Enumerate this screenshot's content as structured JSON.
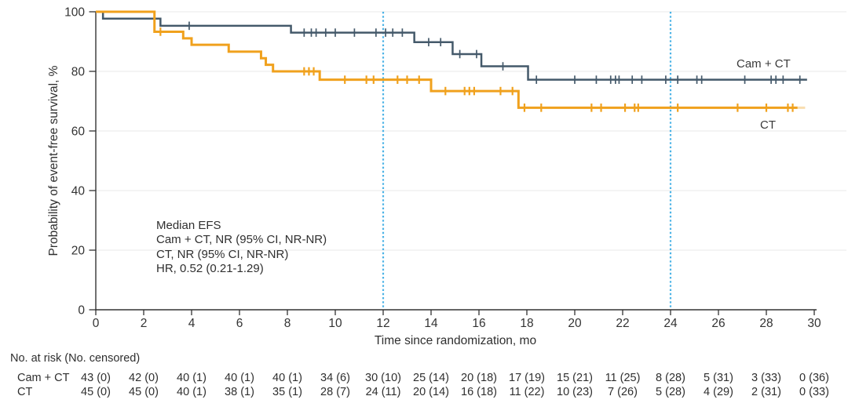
{
  "chart_data": {
    "type": "line",
    "subtype": "kaplan-meier-step-curve",
    "title": "",
    "xlabel": "Time since randomization, mo",
    "ylabel": "Probability of event-free survival, %",
    "xlim": [
      0,
      30
    ],
    "ylim": [
      0,
      100
    ],
    "x_ticks": [
      0,
      2,
      4,
      6,
      8,
      10,
      12,
      14,
      16,
      18,
      20,
      22,
      24,
      26,
      28,
      30
    ],
    "y_ticks": [
      0,
      20,
      40,
      60,
      80,
      100
    ],
    "grid": "horizontal-light",
    "grid_color": "#e8e8e8",
    "axis_color": "#333333",
    "reference_lines": {
      "x_values": [
        12,
        24
      ],
      "style": "dotted",
      "color": "#4cb3e6"
    },
    "series": [
      {
        "name": "Cam + CT",
        "color": "#44596a",
        "line_width": 2.5,
        "steps": [
          [
            0,
            100
          ],
          [
            0.3,
            97.7
          ],
          [
            2.7,
            95.3
          ],
          [
            8.15,
            93.0
          ],
          [
            13.3,
            89.8
          ],
          [
            14.9,
            85.8
          ],
          [
            16.1,
            81.7
          ],
          [
            18.05,
            77.2
          ]
        ],
        "end_x": 29.7,
        "censor_marks": [
          3.9,
          8.7,
          9.0,
          9.2,
          9.6,
          10.0,
          10.8,
          11.7,
          12.1,
          12.4,
          12.8,
          13.9,
          14.4,
          15.2,
          15.9,
          17.0,
          18.4,
          20.0,
          20.9,
          21.5,
          21.7,
          21.85,
          22.4,
          22.8,
          23.8,
          24.3,
          25.1,
          25.3,
          27.1,
          28.2,
          28.4,
          28.7,
          29.4
        ],
        "label": {
          "text": "Cam + CT"
        }
      },
      {
        "name": "CT",
        "color": "#f0a11d",
        "line_width": 3,
        "steps": [
          [
            0,
            100
          ],
          [
            2.45,
            93.3
          ],
          [
            3.65,
            91.1
          ],
          [
            4.0,
            88.9
          ],
          [
            5.55,
            86.6
          ],
          [
            6.9,
            84.4
          ],
          [
            7.1,
            82.2
          ],
          [
            7.4,
            80.0
          ],
          [
            9.35,
            77.2
          ],
          [
            14.0,
            73.4
          ],
          [
            17.65,
            67.8
          ]
        ],
        "end_x": 29.3,
        "ghost_end_x": 29.62,
        "censor_marks": [
          2.7,
          8.7,
          8.9,
          9.1,
          10.4,
          11.3,
          11.6,
          12.6,
          13.0,
          13.5,
          14.6,
          15.4,
          15.6,
          15.8,
          16.9,
          17.4,
          17.9,
          18.6,
          20.7,
          21.1,
          22.1,
          22.5,
          22.65,
          24.3,
          26.8,
          28.0,
          28.9,
          29.1
        ],
        "label": {
          "text": "CT"
        }
      }
    ],
    "annotation": {
      "lines": [
        "Median EFS",
        "Cam + CT, NR (95% CI, NR-NR)",
        "CT, NR (95% CI, NR-NR)",
        "HR, 0.52 (0.21-1.29)"
      ]
    },
    "risk_table": {
      "title": "No. at risk (No. censored)",
      "times": [
        0,
        2,
        4,
        6,
        8,
        10,
        12,
        14,
        16,
        18,
        20,
        22,
        24,
        26,
        28,
        30
      ],
      "rows": [
        {
          "label": "Cam + CT",
          "values": [
            "43 (0)",
            "42 (0)",
            "40 (1)",
            "40 (1)",
            "40 (1)",
            "34 (6)",
            "30 (10)",
            "25 (14)",
            "20 (18)",
            "17 (19)",
            "15 (21)",
            "11 (25)",
            "8 (28)",
            "5 (31)",
            "3 (33)",
            "0 (36)"
          ]
        },
        {
          "label": "CT",
          "values": [
            "45 (0)",
            "45 (0)",
            "40 (1)",
            "38 (1)",
            "35 (1)",
            "28 (7)",
            "24 (11)",
            "20 (14)",
            "16 (18)",
            "11 (22)",
            "10 (23)",
            "7 (26)",
            "5 (28)",
            "4 (29)",
            "2 (31)",
            "0 (33)"
          ]
        }
      ]
    }
  }
}
